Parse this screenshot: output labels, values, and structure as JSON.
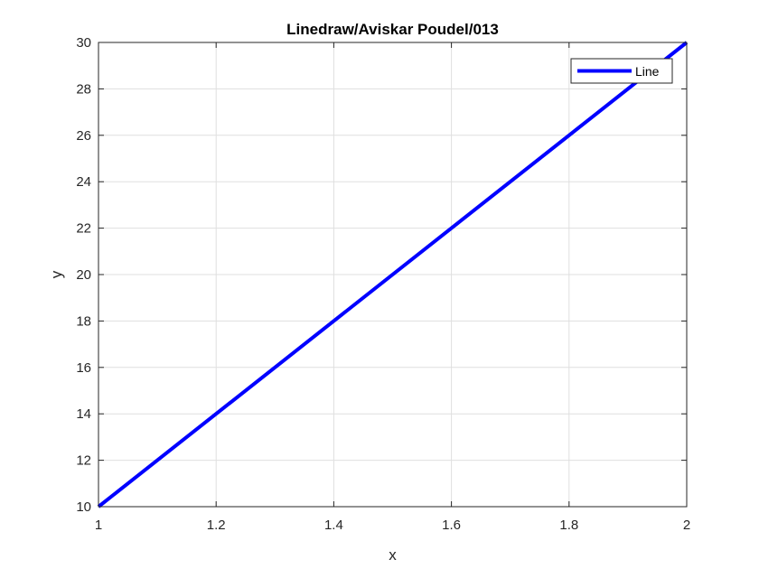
{
  "chart_data": {
    "type": "line",
    "title": "Linedraw/Aviskar Poudel/013",
    "xlabel": "x",
    "ylabel": "y",
    "xlim": [
      1,
      2
    ],
    "ylim": [
      10,
      30
    ],
    "xticks": [
      1,
      1.2,
      1.4,
      1.6,
      1.8,
      2
    ],
    "xtick_labels": [
      "1",
      "1.2",
      "1.4",
      "1.6",
      "1.8",
      "2"
    ],
    "yticks": [
      10,
      12,
      14,
      16,
      18,
      20,
      22,
      24,
      26,
      28,
      30
    ],
    "ytick_labels": [
      "10",
      "12",
      "14",
      "16",
      "18",
      "20",
      "22",
      "24",
      "26",
      "28",
      "30"
    ],
    "grid": true,
    "legend_position": "top-right",
    "series": [
      {
        "name": "Line",
        "color": "#0000ff",
        "x": [
          1,
          2
        ],
        "y": [
          10,
          30
        ]
      }
    ]
  }
}
